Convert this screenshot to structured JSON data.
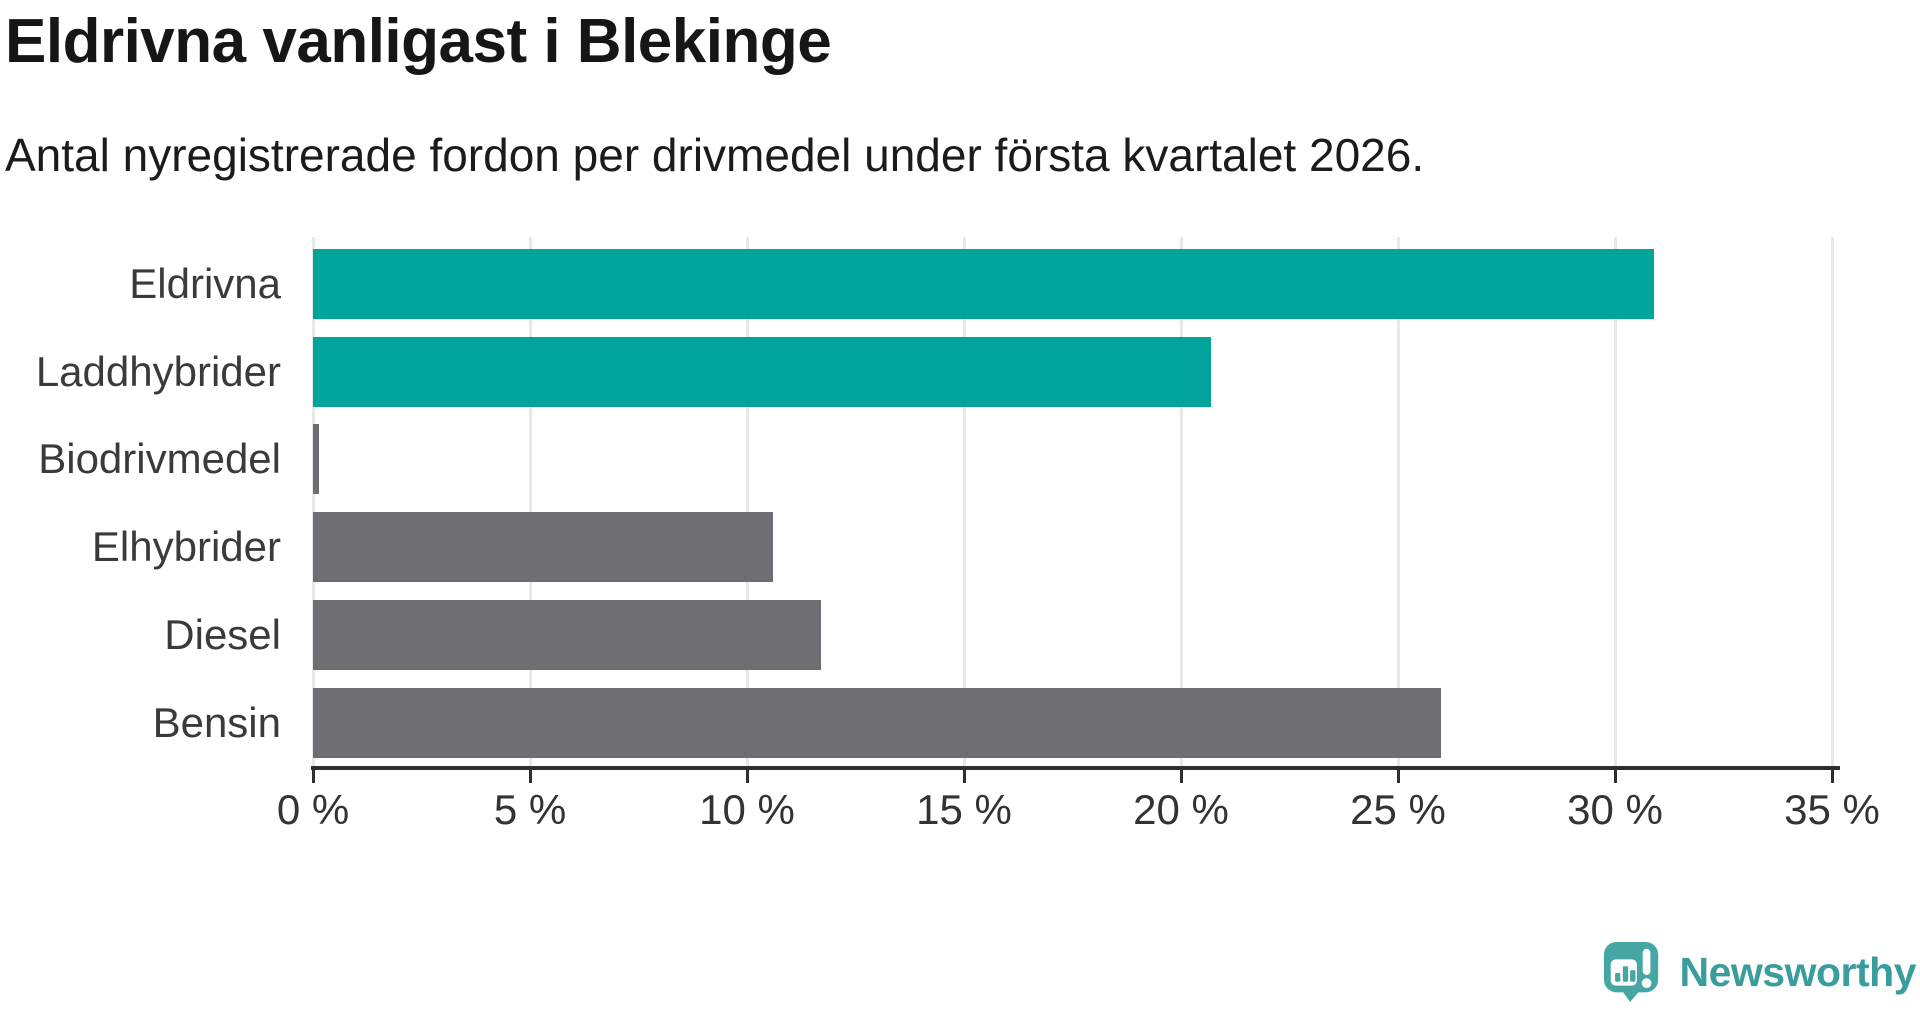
{
  "title": "Eldrivna vanligast i Blekinge",
  "subtitle": "Antal nyregistrerade fordon per drivmedel under första kvartalet 2026.",
  "colors": {
    "teal_bar": "#00a49b",
    "gray_bar": "#6d6d72",
    "gridline": "#e8e8e8",
    "axis": "#2e2e2e",
    "title_text": "#161616",
    "label_text": "#3a3a3a",
    "logo_teal": "#3a9d9d",
    "logo_icon_teal": "#45a6a4"
  },
  "chart_data": {
    "type": "bar",
    "orientation": "horizontal",
    "title": "Eldrivna vanligast i Blekinge",
    "subtitle": "Antal nyregistrerade fordon per drivmedel under första kvartalet 2026.",
    "categories": [
      "Eldrivna",
      "Laddhybrider",
      "Biodrivmedel",
      "Elhybrider",
      "Diesel",
      "Bensin"
    ],
    "values": [
      30.9,
      20.7,
      0.13,
      10.6,
      11.7,
      26.0
    ],
    "bar_colors": [
      "#00a49b",
      "#00a49b",
      "#6d6d72",
      "#6d6d72",
      "#6d6d72",
      "#6d6d72"
    ],
    "xlabel": "",
    "ylabel": "",
    "xlim": [
      0,
      35
    ],
    "x_tick_values": [
      0,
      5,
      10,
      15,
      20,
      25,
      30,
      35
    ],
    "x_tick_labels": [
      "0 %",
      "5 %",
      "10 %",
      "15 %",
      "20 %",
      "25 %",
      "30 %",
      "35 %"
    ],
    "grid": "vertical",
    "legend": "none"
  },
  "logo": {
    "text": "Newsworthy"
  }
}
